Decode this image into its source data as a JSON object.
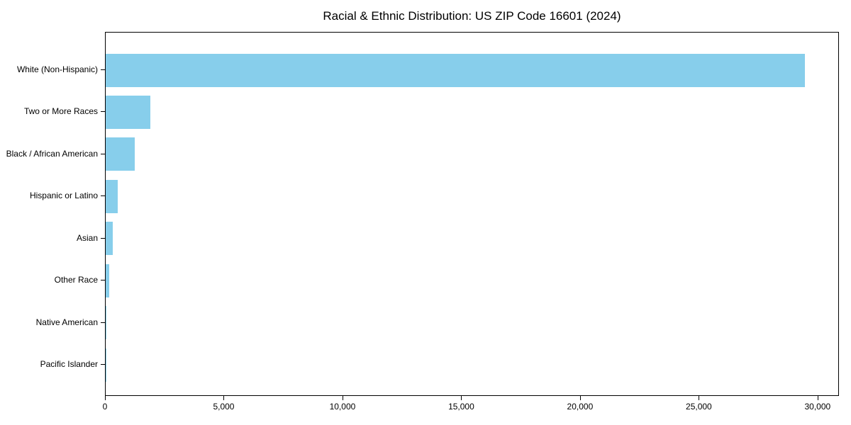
{
  "chart_data": {
    "type": "bar",
    "orientation": "horizontal",
    "title": "Racial & Ethnic Distribution: US ZIP Code 16601 (2024)",
    "categories": [
      "White (Non-Hispanic)",
      "Two or More Races",
      "Black / African American",
      "Hispanic or Latino",
      "Asian",
      "Other Race",
      "Native American",
      "Pacific Islander"
    ],
    "values": [
      29500,
      1880,
      1230,
      520,
      300,
      140,
      25,
      10
    ],
    "bar_color": "#87CEEB",
    "xlabel": "",
    "ylabel": "",
    "xlim": [
      0,
      30900
    ],
    "x_ticks": [
      0,
      5000,
      10000,
      15000,
      20000,
      25000,
      30000
    ],
    "x_tick_labels": [
      "0",
      "5,000",
      "10,000",
      "15,000",
      "20,000",
      "25,000",
      "30,000"
    ],
    "grid": false,
    "legend": "none",
    "background_color": "#ffffff",
    "frame_color": "#000000"
  }
}
